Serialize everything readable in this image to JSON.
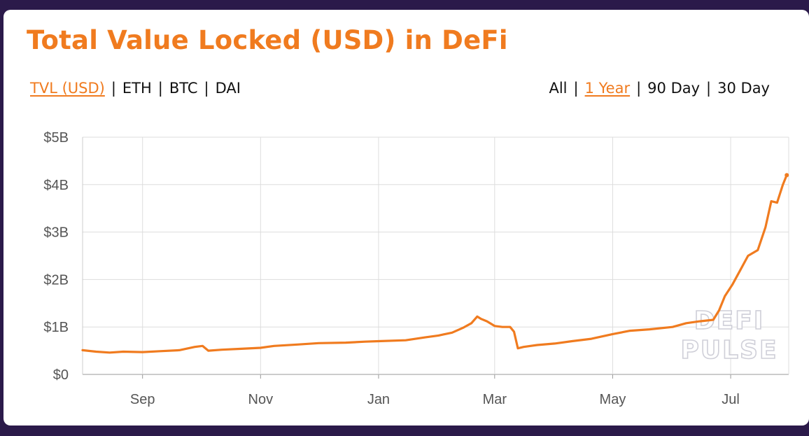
{
  "title": "Total Value Locked (USD) in DeFi",
  "metric_tabs": [
    {
      "label": "TVL (USD)",
      "active": true
    },
    {
      "label": "ETH",
      "active": false
    },
    {
      "label": "BTC",
      "active": false
    },
    {
      "label": "DAI",
      "active": false
    }
  ],
  "range_tabs": [
    {
      "label": "All",
      "active": false
    },
    {
      "label": "1 Year",
      "active": true
    },
    {
      "label": "90 Day",
      "active": false
    },
    {
      "label": "30 Day",
      "active": false
    }
  ],
  "separator": "|",
  "watermark": [
    "DEFI",
    "PULSE"
  ],
  "colors": {
    "accent": "#f07b1f",
    "background": "#2b1a4a",
    "card": "#ffffff",
    "grid": "#dddddd"
  },
  "chart_data": {
    "type": "line",
    "title": "Total Value Locked (USD) in DeFi",
    "xlabel": "",
    "ylabel": "",
    "grid": true,
    "x_ticks": [
      {
        "label": "Sep",
        "date": "2019-09-01"
      },
      {
        "label": "Nov",
        "date": "2019-11-01"
      },
      {
        "label": "Jan",
        "date": "2020-01-01"
      },
      {
        "label": "Mar",
        "date": "2020-03-01"
      },
      {
        "label": "May",
        "date": "2020-05-01"
      },
      {
        "label": "Jul",
        "date": "2020-07-01"
      }
    ],
    "y_ticks": [
      {
        "label": "$0",
        "value": 0
      },
      {
        "label": "$1B",
        "value": 1
      },
      {
        "label": "$2B",
        "value": 2
      },
      {
        "label": "$3B",
        "value": 3
      },
      {
        "label": "$4B",
        "value": 4
      },
      {
        "label": "$5B",
        "value": 5
      }
    ],
    "ylim": [
      0,
      5
    ],
    "xlim": [
      "2019-08-01",
      "2020-07-31"
    ],
    "series": [
      {
        "color": "#f07b1f",
        "points": [
          [
            "2019-08-01",
            0.51
          ],
          [
            "2019-08-08",
            0.48
          ],
          [
            "2019-08-15",
            0.46
          ],
          [
            "2019-08-22",
            0.48
          ],
          [
            "2019-09-01",
            0.47
          ],
          [
            "2019-09-10",
            0.49
          ],
          [
            "2019-09-20",
            0.51
          ],
          [
            "2019-09-28",
            0.58
          ],
          [
            "2019-10-02",
            0.6
          ],
          [
            "2019-10-05",
            0.5
          ],
          [
            "2019-10-12",
            0.52
          ],
          [
            "2019-10-22",
            0.54
          ],
          [
            "2019-11-01",
            0.56
          ],
          [
            "2019-11-08",
            0.6
          ],
          [
            "2019-11-20",
            0.63
          ],
          [
            "2019-12-01",
            0.66
          ],
          [
            "2019-12-15",
            0.67
          ],
          [
            "2019-12-25",
            0.69
          ],
          [
            "2020-01-01",
            0.7
          ],
          [
            "2020-01-15",
            0.72
          ],
          [
            "2020-01-25",
            0.78
          ],
          [
            "2020-02-01",
            0.82
          ],
          [
            "2020-02-08",
            0.88
          ],
          [
            "2020-02-14",
            0.99
          ],
          [
            "2020-02-18",
            1.08
          ],
          [
            "2020-02-21",
            1.22
          ],
          [
            "2020-02-23",
            1.17
          ],
          [
            "2020-02-26",
            1.12
          ],
          [
            "2020-03-01",
            1.02
          ],
          [
            "2020-03-05",
            1.0
          ],
          [
            "2020-03-09",
            1.0
          ],
          [
            "2020-03-11",
            0.9
          ],
          [
            "2020-03-13",
            0.55
          ],
          [
            "2020-03-16",
            0.58
          ],
          [
            "2020-03-23",
            0.62
          ],
          [
            "2020-04-01",
            0.65
          ],
          [
            "2020-04-10",
            0.7
          ],
          [
            "2020-04-20",
            0.75
          ],
          [
            "2020-05-01",
            0.85
          ],
          [
            "2020-05-10",
            0.92
          ],
          [
            "2020-05-20",
            0.95
          ],
          [
            "2020-06-01",
            1.0
          ],
          [
            "2020-06-08",
            1.08
          ],
          [
            "2020-06-15",
            1.12
          ],
          [
            "2020-06-22",
            1.15
          ],
          [
            "2020-06-25",
            1.35
          ],
          [
            "2020-06-28",
            1.65
          ],
          [
            "2020-07-02",
            1.9
          ],
          [
            "2020-07-06",
            2.2
          ],
          [
            "2020-07-10",
            2.5
          ],
          [
            "2020-07-15",
            2.62
          ],
          [
            "2020-07-19",
            3.1
          ],
          [
            "2020-07-22",
            3.65
          ],
          [
            "2020-07-25",
            3.62
          ],
          [
            "2020-07-28",
            4.0
          ],
          [
            "2020-07-30",
            4.2
          ]
        ]
      }
    ]
  }
}
